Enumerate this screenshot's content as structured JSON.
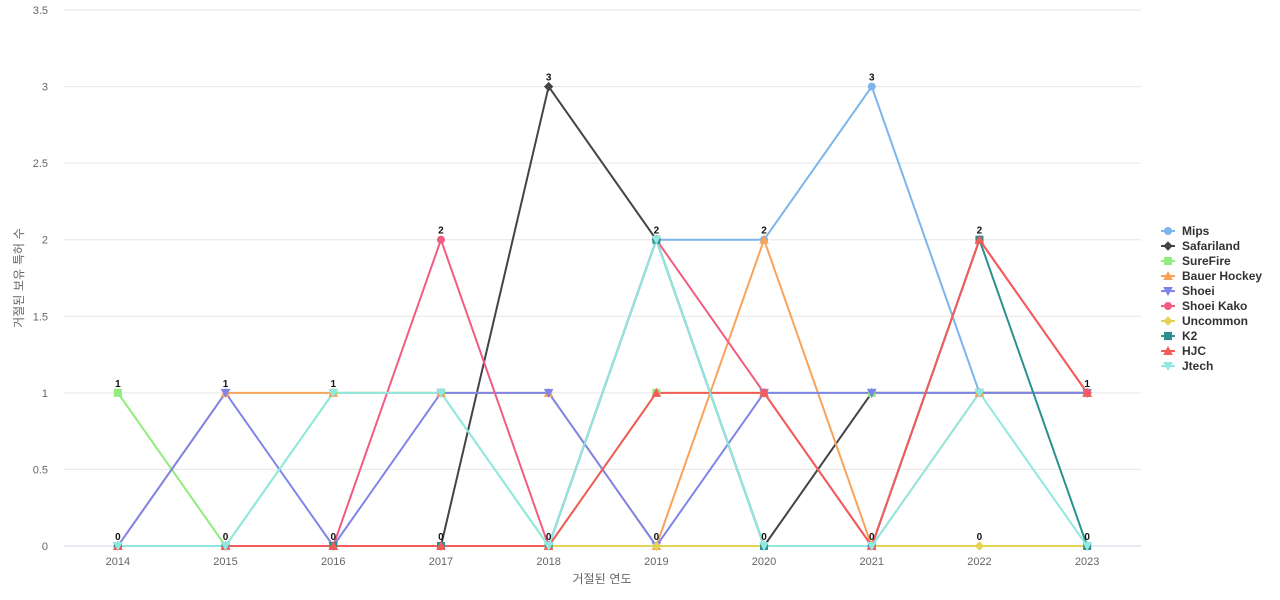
{
  "chart_data": {
    "type": "line",
    "xlabel": "거절된 연도",
    "ylabel": "거절된 보유 특허 수",
    "ylim": [
      0,
      3.5
    ],
    "yticks": [
      0,
      0.5,
      1,
      1.5,
      2,
      2.5,
      3,
      3.5
    ],
    "categories": [
      "2014",
      "2015",
      "2016",
      "2017",
      "2018",
      "2019",
      "2020",
      "2021",
      "2022",
      "2023"
    ],
    "grid": true,
    "legend_position": "right",
    "data_labels": [
      "1",
      "1",
      "1",
      "2",
      "3",
      "2",
      "2",
      "3",
      "2",
      "1"
    ],
    "series": [
      {
        "name": "Mips",
        "color": "#7cb5ec",
        "marker": "circle",
        "values": [
          0,
          0,
          0,
          0,
          0,
          2,
          2,
          3,
          1,
          1
        ]
      },
      {
        "name": "Safariland",
        "color": "#434348",
        "marker": "diamond",
        "values": [
          0,
          0,
          0,
          0,
          3,
          2,
          0,
          1,
          1,
          1
        ]
      },
      {
        "name": "SureFire",
        "color": "#90ed7d",
        "marker": "square",
        "values": [
          1,
          0,
          1,
          1,
          0,
          1,
          1,
          1,
          1,
          1
        ]
      },
      {
        "name": "Bauer Hockey",
        "color": "#f7a35c",
        "marker": "triangle",
        "values": [
          0,
          1,
          1,
          1,
          1,
          0,
          2,
          0,
          1,
          1
        ]
      },
      {
        "name": "Shoei",
        "color": "#8085e9",
        "marker": "triangle-down",
        "values": [
          0,
          1,
          0,
          1,
          1,
          0,
          1,
          1,
          1,
          1
        ]
      },
      {
        "name": "Shoei Kako",
        "color": "#f15c80",
        "marker": "circle",
        "values": [
          0,
          0,
          0,
          2,
          0,
          2,
          1,
          0,
          2,
          1
        ]
      },
      {
        "name": "Uncommon",
        "color": "#e4d354",
        "marker": "diamond",
        "values": [
          0,
          0,
          0,
          0,
          0,
          0,
          0,
          0,
          0,
          0
        ]
      },
      {
        "name": "K2",
        "color": "#2b908f",
        "marker": "square",
        "values": [
          0,
          0,
          0,
          0,
          0,
          2,
          0,
          0,
          2,
          0
        ]
      },
      {
        "name": "HJC",
        "color": "#f45b5b",
        "marker": "triangle",
        "values": [
          0,
          0,
          0,
          0,
          0,
          1,
          1,
          0,
          2,
          1
        ]
      },
      {
        "name": "Jtech",
        "color": "#91e8e1",
        "marker": "triangle-down",
        "values": [
          0,
          0,
          1,
          1,
          0,
          2,
          0,
          0,
          1,
          0
        ]
      }
    ]
  }
}
